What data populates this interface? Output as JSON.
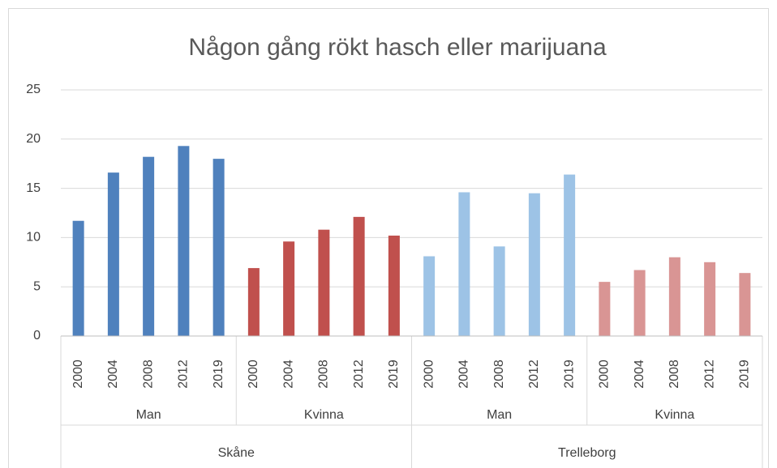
{
  "chart_data": {
    "type": "bar",
    "title": "Någon gång rökt hasch eller marijuana",
    "ylim": [
      0,
      25
    ],
    "yticks": [
      0,
      5,
      10,
      15,
      20,
      25
    ],
    "grid": true,
    "regions": [
      {
        "label": "Skåne",
        "groups": [
          {
            "label": "Man",
            "color": "#4f81bd",
            "categories": [
              "2000",
              "2004",
              "2008",
              "2012",
              "2019"
            ],
            "values": [
              11.7,
              16.6,
              18.2,
              19.3,
              18.0
            ]
          },
          {
            "label": "Kvinna",
            "color": "#c0504d",
            "categories": [
              "2000",
              "2004",
              "2008",
              "2012",
              "2019"
            ],
            "values": [
              6.9,
              9.6,
              10.8,
              12.1,
              10.2
            ]
          }
        ]
      },
      {
        "label": "Trelleborg",
        "groups": [
          {
            "label": "Man",
            "color": "#9dc3e6",
            "categories": [
              "2000",
              "2004",
              "2008",
              "2012",
              "2019"
            ],
            "values": [
              8.1,
              14.6,
              9.1,
              14.5,
              16.4
            ]
          },
          {
            "label": "Kvinna",
            "color": "#d99594",
            "categories": [
              "2000",
              "2004",
              "2008",
              "2012",
              "2019"
            ],
            "values": [
              5.5,
              6.7,
              8.0,
              7.5,
              6.4
            ]
          }
        ]
      }
    ]
  }
}
